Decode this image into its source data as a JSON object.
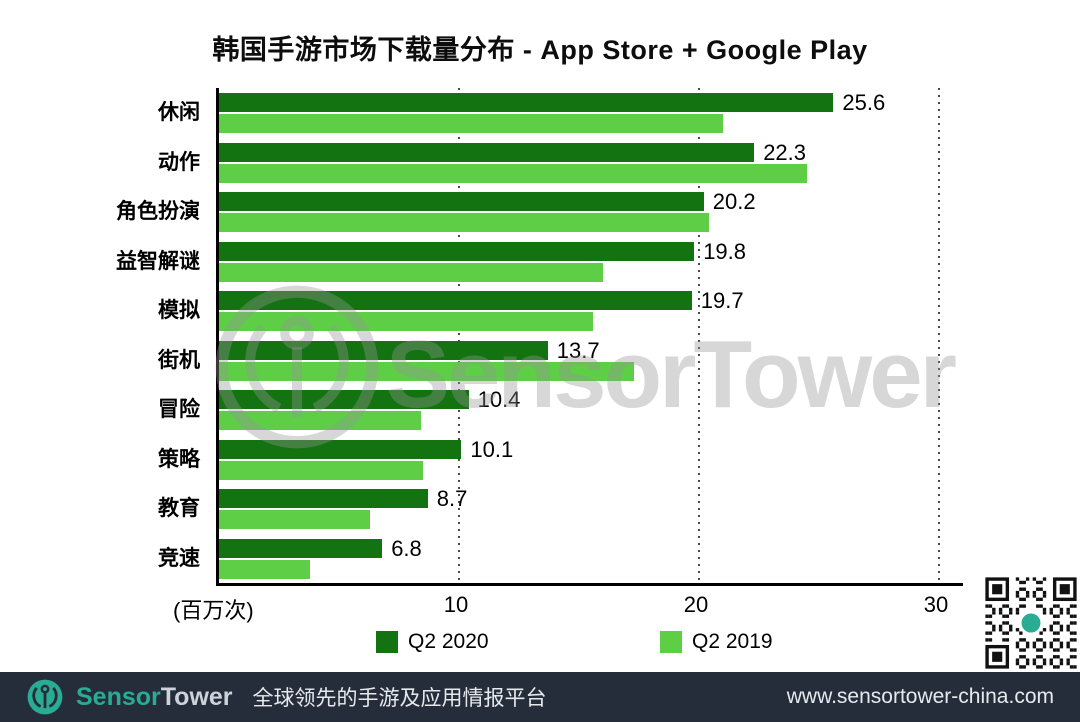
{
  "page": {
    "background": "#ffffff"
  },
  "chart_data": {
    "type": "bar",
    "orientation": "horizontal",
    "title": "韩国手游市场下载量分布 - App Store + Google Play",
    "categories": [
      "休闲",
      "动作",
      "角色扮演",
      "益智解谜",
      "模拟",
      "街机",
      "冒险",
      "策略",
      "教育",
      "竞速"
    ],
    "series": [
      {
        "name": "Q2 2020",
        "color": "#147311",
        "values": [
          25.6,
          22.3,
          20.2,
          19.8,
          19.7,
          13.7,
          10.4,
          10.1,
          8.7,
          6.8
        ],
        "value_labels": [
          "25.6",
          "22.3",
          "20.2",
          "19.8",
          "19.7",
          "13.7",
          "10.4",
          "10.1",
          "8.7",
          "6.8"
        ]
      },
      {
        "name": "Q2 2019",
        "color": "#5ece46",
        "values": [
          21.0,
          24.5,
          20.4,
          16.0,
          15.6,
          17.3,
          8.4,
          8.5,
          6.3,
          3.8
        ],
        "value_labels": []
      }
    ],
    "xlim": [
      0,
      30
    ],
    "x_ticks": [
      "10",
      "20",
      "30"
    ],
    "x_unit_label": "(百万次)",
    "grid": "dotted-vertical",
    "legend_position": "bottom",
    "axis_color": "#000000"
  },
  "watermark": {
    "text": "SensorTower"
  },
  "footer": {
    "brand_sensor": "Sensor",
    "brand_tower": "Tower",
    "tagline": "全球领先的手游及应用情报平台",
    "url": "www.sensortower-china.com",
    "background": "#262d3a",
    "accent": "#2aab93",
    "tower_color": "#ccd3da",
    "text_color": "#e6eaee"
  }
}
